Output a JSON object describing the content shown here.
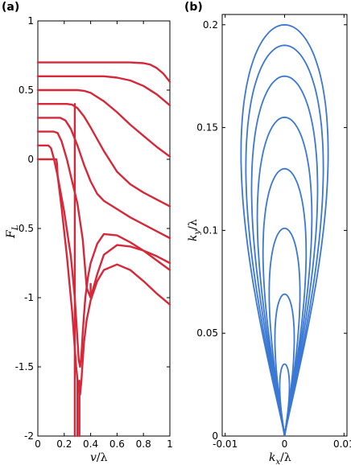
{
  "chart_data": [
    {
      "panel": "(a)",
      "type": "line",
      "xlabel": "v/λ",
      "ylabel": "F_L",
      "xlim": [
        0,
        1
      ],
      "ylim": [
        -2,
        1
      ],
      "xticks": [
        "0",
        "0.2",
        "0.4",
        "0.6",
        "0.8",
        "1"
      ],
      "yticks": [
        "-2",
        "-1.5",
        "-1",
        "-0.5",
        "0",
        "0.5",
        "1"
      ],
      "grid": false,
      "color": "#d62839",
      "series": [
        {
          "x": [
            0,
            0.5,
            0.7,
            0.8,
            0.85,
            0.9,
            0.95,
            1
          ],
          "y": [
            0.7,
            0.7,
            0.7,
            0.695,
            0.685,
            0.66,
            0.62,
            0.56
          ]
        },
        {
          "x": [
            0,
            0.4,
            0.5,
            0.6,
            0.7,
            0.8,
            0.9,
            1
          ],
          "y": [
            0.6,
            0.6,
            0.6,
            0.59,
            0.57,
            0.53,
            0.47,
            0.39
          ]
        },
        {
          "x": [
            0,
            0.3,
            0.35,
            0.4,
            0.5,
            0.6,
            0.7,
            0.8,
            0.9,
            1
          ],
          "y": [
            0.5,
            0.5,
            0.495,
            0.48,
            0.42,
            0.34,
            0.25,
            0.17,
            0.09,
            0.02
          ]
        },
        {
          "x": [
            0,
            0.22,
            0.26,
            0.3,
            0.35,
            0.4,
            0.5,
            0.6,
            0.7,
            0.8,
            0.9,
            1
          ],
          "y": [
            0.4,
            0.4,
            0.395,
            0.37,
            0.31,
            0.23,
            0.06,
            -0.09,
            -0.18,
            -0.24,
            -0.29,
            -0.34
          ]
        },
        {
          "x": [
            0,
            0.17,
            0.21,
            0.25,
            0.3,
            0.35,
            0.4,
            0.45,
            0.5,
            0.6,
            0.7,
            0.8,
            0.9,
            1
          ],
          "y": [
            0.3,
            0.3,
            0.28,
            0.22,
            0.1,
            -0.04,
            -0.16,
            -0.25,
            -0.3,
            -0.36,
            -0.42,
            -0.47,
            -0.52,
            -0.57
          ]
        },
        {
          "x": [
            0,
            0.12,
            0.15,
            0.18,
            0.22,
            0.26,
            0.3,
            0.34,
            0.37,
            0.4,
            0.45,
            0.5,
            0.6,
            0.7,
            0.8,
            0.9,
            1
          ],
          "y": [
            0.2,
            0.2,
            0.19,
            0.13,
            0.0,
            -0.16,
            -0.32,
            -0.58,
            -0.93,
            -1.0,
            -0.83,
            -0.69,
            -0.62,
            -0.63,
            -0.66,
            -0.7,
            -0.75
          ]
        },
        {
          "x": [
            0,
            0.08,
            0.1,
            0.12,
            0.15,
            0.2,
            0.25,
            0.28,
            0.3,
            0.31,
            0.32,
            0.33,
            0.34,
            0.35,
            0.36,
            0.38,
            0.4,
            0.45,
            0.5,
            0.6,
            0.7,
            0.8,
            0.9,
            1
          ],
          "y": [
            0.1,
            0.1,
            0.08,
            0.01,
            -0.12,
            -0.38,
            -0.7,
            -1.0,
            -1.3,
            -1.45,
            -1.5,
            -1.42,
            -1.25,
            -1.12,
            -1.0,
            -0.85,
            -0.75,
            -0.61,
            -0.54,
            -0.55,
            -0.6,
            -0.66,
            -0.73,
            -0.8
          ]
        },
        {
          "x": [
            0,
            0.14,
            0.145,
            0.15,
            0.18,
            0.22,
            0.26,
            0.29,
            0.31,
            0.32,
            0.33,
            0.34,
            0.35,
            0.37,
            0.4,
            0.45,
            0.5,
            0.6,
            0.7,
            0.8,
            0.9,
            1
          ],
          "y": [
            0,
            0,
            -0.03,
            -0.12,
            -0.35,
            -0.7,
            -1.1,
            -1.5,
            -1.68,
            -1.7,
            -1.6,
            -1.45,
            -1.32,
            -1.16,
            -1.02,
            -0.88,
            -0.8,
            -0.76,
            -0.8,
            -0.88,
            -0.97,
            -1.05
          ]
        },
        {
          "x": [
            0.3,
            0.3
          ],
          "y": [
            -2,
            -1.6
          ]
        },
        {
          "x": [
            0.315,
            0.315
          ],
          "y": [
            -2,
            -1.6
          ]
        },
        {
          "x": [
            0.28,
            0.28
          ],
          "y": [
            0.4,
            -2
          ]
        },
        {
          "x": [
            0.4,
            0.4
          ],
          "y": [
            -0.9,
            -0.97
          ]
        }
      ]
    },
    {
      "panel": "(b)",
      "type": "line",
      "xlabel": "k_x/λ",
      "ylabel": "k_y/λ",
      "xlim": [
        -0.0105,
        0.0105
      ],
      "ylim": [
        0,
        0.205
      ],
      "xticks": [
        "-0.01",
        "0",
        "0.01"
      ],
      "yticks": [
        "0",
        "0.05",
        "0.1",
        "0.15",
        "0.2"
      ],
      "grid": false,
      "color": "#3a78d4",
      "loops": [
        {
          "height": 0.2,
          "halfwidth": 0.0099
        },
        {
          "height": 0.19,
          "halfwidth": 0.0088
        },
        {
          "height": 0.175,
          "halfwidth": 0.0075
        },
        {
          "height": 0.155,
          "halfwidth": 0.0062
        },
        {
          "height": 0.13,
          "halfwidth": 0.0049
        },
        {
          "height": 0.101,
          "halfwidth": 0.0035
        },
        {
          "height": 0.069,
          "halfwidth": 0.0022
        },
        {
          "height": 0.035,
          "halfwidth": 0.0011
        }
      ]
    }
  ],
  "labels": {
    "panel_a": "(a)",
    "panel_b": "(b)",
    "xlabel_a_var": "v",
    "xlabel_a_rest": "/λ",
    "ylabel_a_main": "F",
    "ylabel_a_sub": "L",
    "xlabel_b_var": "k",
    "xlabel_b_sub": "x",
    "xlabel_b_rest": "/λ",
    "ylabel_b_var": "k",
    "ylabel_b_sub": "y",
    "ylabel_b_rest": "/λ"
  }
}
